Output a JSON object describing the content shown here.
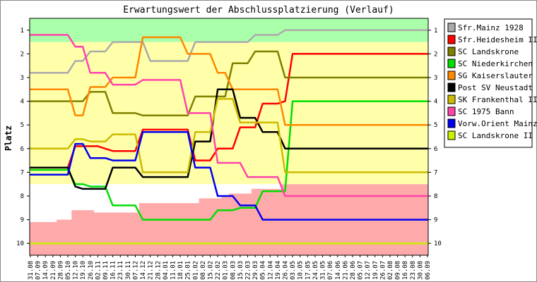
{
  "chart_data": {
    "type": "line",
    "title": "Erwartungswert der Abschlussplatzierung (Verlauf)",
    "ylabel": "Platz",
    "ylim": [
      1,
      10
    ],
    "y_inverted": true,
    "y_ticks": [
      "1",
      "2",
      "3",
      "4",
      "5",
      "6",
      "7",
      "8",
      "9",
      "10"
    ],
    "zones": [
      {
        "name": "aufstieg",
        "from": 0.5,
        "to": 1.5,
        "color": "#aaffaa"
      },
      {
        "name": "mittelfeld",
        "from": 1.5,
        "to": 7.5,
        "color": "#ffffaa"
      },
      {
        "name": "abstieg",
        "from": 7.5,
        "to": 10.5,
        "color": "#ffaaaa"
      }
    ],
    "categories": [
      "31.08",
      "07.09",
      "14.09",
      "21.09",
      "28.09",
      "05.10",
      "12.10",
      "19.10",
      "26.10",
      "02.11",
      "09.11",
      "16.11",
      "23.11",
      "30.11",
      "07.12",
      "14.12",
      "21.12",
      "28.12",
      "04.01",
      "11.01",
      "18.01",
      "25.01",
      "01.02",
      "08.02",
      "15.02",
      "22.02",
      "01.03",
      "08.03",
      "15.03",
      "22.03",
      "29.03",
      "05.04",
      "12.04",
      "19.04",
      "26.04",
      "03.05",
      "10.05",
      "17.05",
      "24.05",
      "31.05",
      "07.06",
      "14.06",
      "21.06",
      "28.06",
      "05.07",
      "12.07",
      "19.07",
      "26.07",
      "02.08",
      "09.08",
      "16.08",
      "23.08",
      "30.08",
      "06.09"
    ],
    "series": [
      {
        "name": "Sfr.Mainz 1928",
        "color": "#aaaaaa",
        "values": [
          2.8,
          2.8,
          2.8,
          2.8,
          2.8,
          2.8,
          2.3,
          2.3,
          1.9,
          1.9,
          1.9,
          1.5,
          1.5,
          1.5,
          1.5,
          1.5,
          2.3,
          2.3,
          2.3,
          2.3,
          2.3,
          2.3,
          1.5,
          1.5,
          1.5,
          1.5,
          1.5,
          1.5,
          1.5,
          1.5,
          1.2,
          1.2,
          1.2,
          1.2,
          1.0,
          1.0,
          1.0,
          1.0,
          1.0,
          1.0,
          1.0,
          1.0,
          1.0,
          1.0,
          1.0,
          1.0,
          1.0,
          1.0,
          1.0,
          1.0,
          1.0,
          1.0,
          1.0,
          1.0
        ]
      },
      {
        "name": "Sfr.Heidesheim II",
        "color": "#ff0000",
        "values": [
          6.8,
          6.8,
          6.8,
          6.8,
          6.8,
          6.8,
          5.9,
          5.9,
          5.9,
          5.9,
          6.0,
          6.1,
          6.1,
          6.1,
          6.1,
          5.2,
          5.2,
          5.2,
          5.2,
          5.2,
          5.2,
          5.2,
          6.5,
          6.5,
          6.5,
          6.0,
          6.0,
          6.0,
          5.1,
          5.1,
          5.1,
          4.1,
          4.1,
          4.1,
          4.0,
          2.0,
          2.0,
          2.0,
          2.0,
          2.0,
          2.0,
          2.0,
          2.0,
          2.0,
          2.0,
          2.0,
          2.0,
          2.0,
          2.0,
          2.0,
          2.0,
          2.0,
          2.0,
          2.0
        ]
      },
      {
        "name": "SC Landskrone",
        "color": "#808000",
        "values": [
          4.0,
          4.0,
          4.0,
          4.0,
          4.0,
          4.0,
          4.0,
          4.0,
          3.6,
          3.6,
          3.6,
          4.5,
          4.5,
          4.5,
          4.5,
          4.6,
          4.6,
          4.6,
          4.6,
          4.6,
          4.6,
          4.6,
          3.8,
          3.8,
          3.8,
          3.8,
          3.8,
          2.4,
          2.4,
          2.4,
          1.9,
          1.9,
          1.9,
          1.9,
          3.0,
          3.0,
          3.0,
          3.0,
          3.0,
          3.0,
          3.0,
          3.0,
          3.0,
          3.0,
          3.0,
          3.0,
          3.0,
          3.0,
          3.0,
          3.0,
          3.0,
          3.0,
          3.0,
          3.0
        ]
      },
      {
        "name": "SC Niederkirchen",
        "color": "#00dd00",
        "values": [
          6.9,
          6.9,
          6.9,
          6.9,
          6.9,
          6.9,
          7.5,
          7.5,
          7.6,
          7.6,
          7.6,
          8.4,
          8.4,
          8.4,
          8.4,
          9.0,
          9.0,
          9.0,
          9.0,
          9.0,
          9.0,
          9.0,
          9.0,
          9.0,
          9.0,
          8.6,
          8.6,
          8.6,
          8.5,
          8.5,
          8.5,
          7.8,
          7.8,
          7.8,
          7.8,
          4.0,
          4.0,
          4.0,
          4.0,
          4.0,
          4.0,
          4.0,
          4.0,
          4.0,
          4.0,
          4.0,
          4.0,
          4.0,
          4.0,
          4.0,
          4.0,
          4.0,
          4.0,
          4.0
        ]
      },
      {
        "name": "SG Kaiserslauter",
        "color": "#ff8800",
        "values": [
          3.5,
          3.5,
          3.5,
          3.5,
          3.5,
          3.5,
          4.6,
          4.6,
          3.4,
          3.4,
          3.4,
          3.0,
          3.0,
          3.0,
          3.0,
          1.3,
          1.3,
          1.3,
          1.3,
          1.3,
          1.3,
          2.0,
          2.0,
          2.0,
          2.0,
          2.8,
          2.8,
          3.5,
          3.5,
          3.5,
          3.5,
          3.5,
          3.5,
          3.5,
          5.0,
          5.0,
          5.0,
          5.0,
          5.0,
          5.0,
          5.0,
          5.0,
          5.0,
          5.0,
          5.0,
          5.0,
          5.0,
          5.0,
          5.0,
          5.0,
          5.0,
          5.0,
          5.0,
          5.0
        ]
      },
      {
        "name": "Post SV Neustadt",
        "color": "#000000",
        "values": [
          6.8,
          6.8,
          6.8,
          6.8,
          6.8,
          6.8,
          7.6,
          7.7,
          7.7,
          7.7,
          7.7,
          6.8,
          6.8,
          6.8,
          6.8,
          7.2,
          7.2,
          7.2,
          7.2,
          7.2,
          7.2,
          7.2,
          5.7,
          5.7,
          5.7,
          3.5,
          3.5,
          3.5,
          4.7,
          4.7,
          4.7,
          5.3,
          5.3,
          5.3,
          6.0,
          6.0,
          6.0,
          6.0,
          6.0,
          6.0,
          6.0,
          6.0,
          6.0,
          6.0,
          6.0,
          6.0,
          6.0,
          6.0,
          6.0,
          6.0,
          6.0,
          6.0,
          6.0,
          6.0
        ]
      },
      {
        "name": "SK Frankenthal II",
        "color": "#ccbb00",
        "values": [
          6.0,
          6.0,
          6.0,
          6.0,
          6.0,
          6.0,
          5.6,
          5.6,
          5.7,
          5.7,
          5.7,
          5.4,
          5.4,
          5.4,
          5.4,
          7.0,
          7.0,
          7.0,
          7.0,
          7.0,
          7.0,
          7.0,
          5.3,
          5.3,
          5.3,
          3.9,
          3.9,
          3.9,
          4.9,
          4.9,
          4.9,
          4.9,
          4.9,
          4.9,
          7.0,
          7.0,
          7.0,
          7.0,
          7.0,
          7.0,
          7.0,
          7.0,
          7.0,
          7.0,
          7.0,
          7.0,
          7.0,
          7.0,
          7.0,
          7.0,
          7.0,
          7.0,
          7.0,
          7.0
        ]
      },
      {
        "name": "SC 1975 Bann",
        "color": "#ff44aa",
        "values": [
          1.2,
          1.2,
          1.2,
          1.2,
          1.2,
          1.2,
          1.7,
          1.7,
          2.8,
          2.8,
          2.8,
          3.3,
          3.3,
          3.3,
          3.3,
          3.1,
          3.1,
          3.1,
          3.1,
          3.1,
          3.1,
          4.5,
          4.5,
          4.5,
          4.5,
          6.6,
          6.6,
          6.6,
          6.6,
          7.2,
          7.2,
          7.2,
          7.2,
          7.2,
          8.0,
          8.0,
          8.0,
          8.0,
          8.0,
          8.0,
          8.0,
          8.0,
          8.0,
          8.0,
          8.0,
          8.0,
          8.0,
          8.0,
          8.0,
          8.0,
          8.0,
          8.0,
          8.0,
          8.0
        ]
      },
      {
        "name": "Vorw.Orient Mainz",
        "color": "#0000ee",
        "values": [
          7.1,
          7.1,
          7.1,
          7.1,
          7.1,
          7.1,
          5.8,
          5.8,
          6.4,
          6.4,
          6.4,
          6.5,
          6.5,
          6.5,
          6.5,
          5.3,
          5.3,
          5.3,
          5.3,
          5.3,
          5.3,
          5.3,
          6.8,
          6.8,
          6.8,
          8.0,
          8.0,
          8.0,
          8.4,
          8.4,
          8.4,
          9.0,
          9.0,
          9.0,
          9.0,
          9.0,
          9.0,
          9.0,
          9.0,
          9.0,
          9.0,
          9.0,
          9.0,
          9.0,
          9.0,
          9.0,
          9.0,
          9.0,
          9.0,
          9.0,
          9.0,
          9.0,
          9.0,
          9.0
        ]
      },
      {
        "name": "SC Landskrone II",
        "color": "#ccee00",
        "values": [
          10.0,
          10.0,
          10.0,
          10.0,
          10.0,
          10.0,
          10.0,
          10.0,
          10.0,
          10.0,
          10.0,
          10.0,
          10.0,
          10.0,
          10.0,
          10.0,
          10.0,
          10.0,
          10.0,
          10.0,
          10.0,
          10.0,
          10.0,
          10.0,
          10.0,
          10.0,
          10.0,
          10.0,
          10.0,
          10.0,
          10.0,
          10.0,
          10.0,
          10.0,
          10.0,
          10.0,
          10.0,
          10.0,
          10.0,
          10.0,
          10.0,
          10.0,
          10.0,
          10.0,
          10.0,
          10.0,
          10.0,
          10.0,
          10.0,
          10.0,
          10.0,
          10.0,
          10.0,
          10.0
        ]
      }
    ],
    "abstieg_lower_bound": [
      9.1,
      9.1,
      9.1,
      9.1,
      9.0,
      9.0,
      8.6,
      8.6,
      8.6,
      8.7,
      8.7,
      8.7,
      8.7,
      8.7,
      8.7,
      8.3,
      8.3,
      8.3,
      8.3,
      8.3,
      8.3,
      8.3,
      8.3,
      8.1,
      8.1,
      8.1,
      8.0,
      7.9,
      7.9,
      7.9,
      7.7,
      7.7,
      7.7,
      7.7,
      7.5,
      7.5,
      7.5,
      7.5,
      7.5,
      7.5,
      7.5,
      7.5,
      7.5,
      7.5,
      7.5,
      7.5,
      7.5,
      7.5,
      7.5,
      7.5,
      7.5,
      7.5,
      7.5,
      7.5
    ],
    "legend_position": "right",
    "grid": false
  }
}
